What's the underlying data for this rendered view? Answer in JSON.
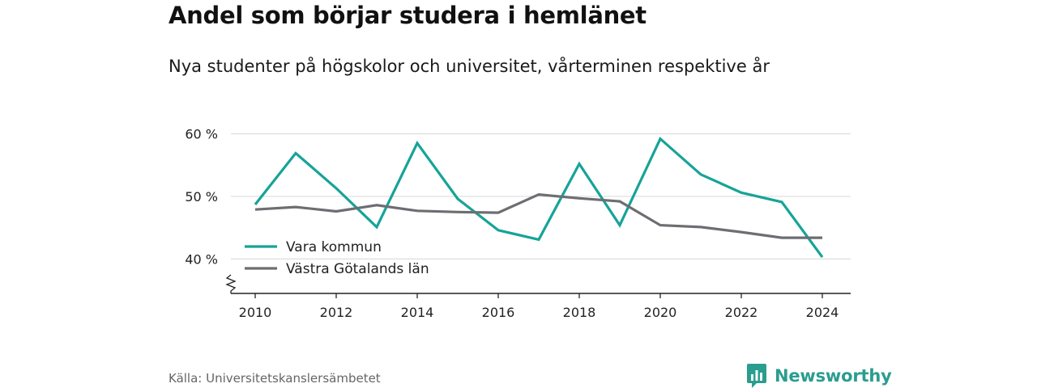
{
  "header": {
    "title": "Andel som börjar studera i hemlänet",
    "subtitle": "Nya studenter på högskolor och universitet, vårterminen respektive år"
  },
  "footer": {
    "source": "Källa: Universitetskanslersämbetet",
    "brand": "Newsworthy"
  },
  "colors": {
    "vara": "#17a398",
    "vastra": "#6d6e72",
    "grid": "#dddddd",
    "axis": "#222222",
    "brand": "#2a9d8f"
  },
  "chart_data": {
    "type": "line",
    "x": [
      2010,
      2011,
      2012,
      2013,
      2014,
      2015,
      2016,
      2017,
      2018,
      2019,
      2020,
      2021,
      2022,
      2023,
      2024
    ],
    "x_ticks": [
      2010,
      2012,
      2014,
      2016,
      2018,
      2020,
      2022,
      2024
    ],
    "y_ticks": [
      40,
      50,
      60
    ],
    "y_tick_labels": [
      "40 %",
      "50 %",
      "60 %"
    ],
    "ylim": [
      34.5,
      62
    ],
    "xlim": [
      2009.4,
      2024.7
    ],
    "y_axis_break": true,
    "grid": true,
    "legend_position": "bottom-left",
    "series": [
      {
        "name": "Vara kommun",
        "color": "#17a398",
        "values": [
          48.7,
          56.9,
          51.3,
          45.1,
          58.5,
          49.6,
          44.6,
          43.1,
          55.2,
          45.4,
          59.2,
          53.5,
          50.6,
          49.1,
          40.3
        ]
      },
      {
        "name": "Västra Götalands län",
        "color": "#6d6e72",
        "values": [
          47.9,
          48.3,
          47.6,
          48.6,
          47.7,
          47.5,
          47.4,
          50.3,
          49.7,
          49.2,
          45.4,
          45.1,
          44.3,
          43.4,
          43.4
        ]
      }
    ]
  }
}
